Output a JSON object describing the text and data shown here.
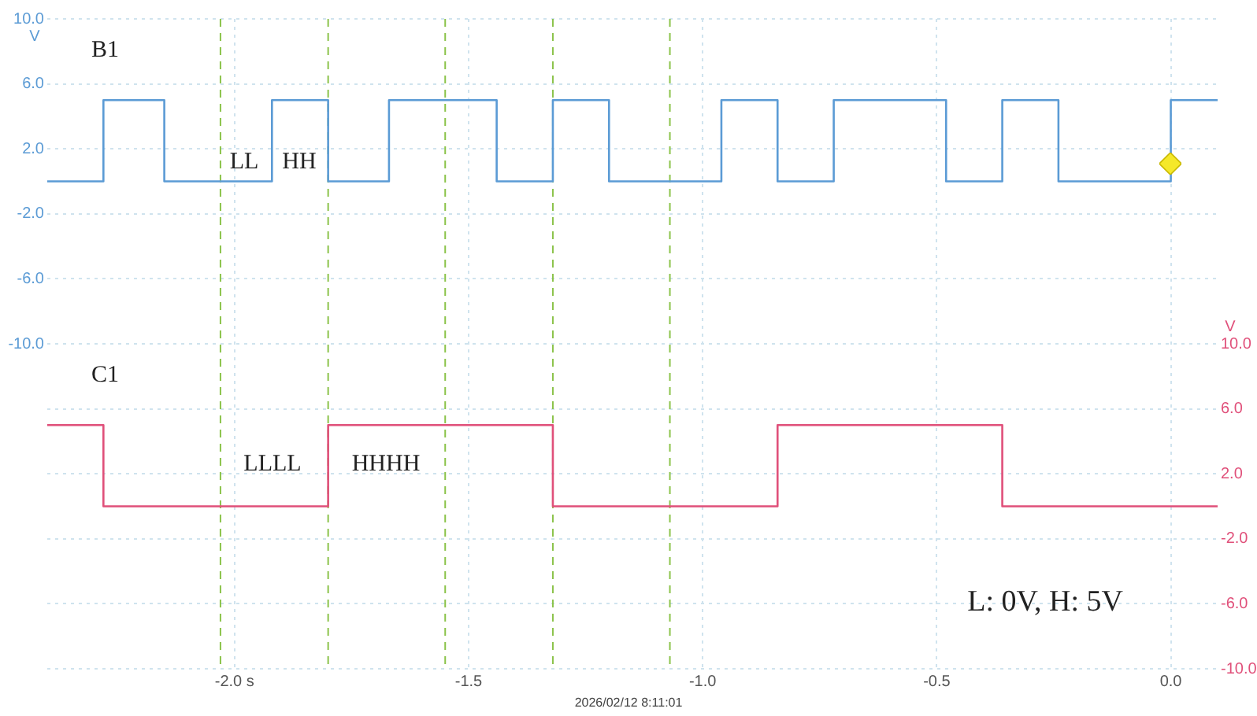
{
  "chart_data": {
    "type": "step",
    "xlim": [
      -2.4,
      0.1
    ],
    "xticks": [
      {
        "value": -2,
        "label": "-2.0 s"
      },
      {
        "value": -1.5,
        "label": "-1.5"
      },
      {
        "value": -1,
        "label": "-1.0"
      },
      {
        "value": -0.5,
        "label": "-0.5"
      },
      {
        "value": 0,
        "label": "0.0"
      }
    ],
    "ylim": [
      -30,
      10
    ],
    "yticks": [
      {
        "value": -10,
        "label": "-10.0"
      },
      {
        "value": -6,
        "label": "-6.0"
      },
      {
        "value": -2,
        "label": "-2.0"
      },
      {
        "value": 2,
        "label": "2.0"
      },
      {
        "value": 6,
        "label": "6.0"
      },
      {
        "value": 10,
        "label": "10.0"
      }
    ],
    "y2lim": [
      -10,
      30
    ],
    "y2ticks": [
      {
        "value": -10,
        "label": "-10.0"
      },
      {
        "value": -6,
        "label": "-6.0"
      },
      {
        "value": -2,
        "label": "-2.0"
      },
      {
        "value": 2,
        "label": "2.0"
      },
      {
        "value": 6,
        "label": "6.0"
      },
      {
        "value": 10,
        "label": "10.0"
      }
    ],
    "ylabel": "V",
    "y2label": "V",
    "grid": true,
    "legend": false,
    "marker": "none",
    "line_style": "solid",
    "series": [
      {
        "name": "B1",
        "color": "#5b9bd5",
        "x": [
          -2.4,
          -2.28,
          -2.15,
          -1.92,
          -1.8,
          -1.67,
          -1.44,
          -1.32,
          -1.2,
          -0.96,
          -0.84,
          -0.72,
          -0.48,
          -0.36,
          -0.24,
          0.0,
          0.1
        ],
        "values": [
          0,
          5,
          0,
          5,
          0,
          5,
          0,
          5,
          0,
          5,
          0,
          5,
          0,
          5,
          0,
          5,
          5
        ]
      },
      {
        "name": "C1",
        "color": "#e0507a",
        "axis": "y2",
        "x": [
          -2.4,
          -2.28,
          -1.8,
          -1.32,
          -0.84,
          -0.36,
          0.1
        ],
        "values": [
          5,
          0,
          5,
          0,
          5,
          0,
          0
        ]
      }
    ],
    "ref_lines": [
      {
        "axis": "x",
        "value": -2.03,
        "color": "#8bc34a",
        "line_style": "dashed"
      },
      {
        "axis": "x",
        "value": -1.8,
        "color": "#8bc34a",
        "line_style": "dashed"
      },
      {
        "axis": "x",
        "value": -1.55,
        "color": "#8bc34a",
        "line_style": "dashed"
      },
      {
        "axis": "x",
        "value": -1.32,
        "color": "#8bc34a",
        "line_style": "dashed"
      },
      {
        "axis": "x",
        "value": -1.07,
        "color": "#8bc34a",
        "line_style": "dashed"
      }
    ],
    "annotations": [
      "LL",
      "HH",
      "LLLL",
      "HHHH",
      "L: 0V, H: 5V",
      "2026/02/12 8:11:01"
    ]
  }
}
